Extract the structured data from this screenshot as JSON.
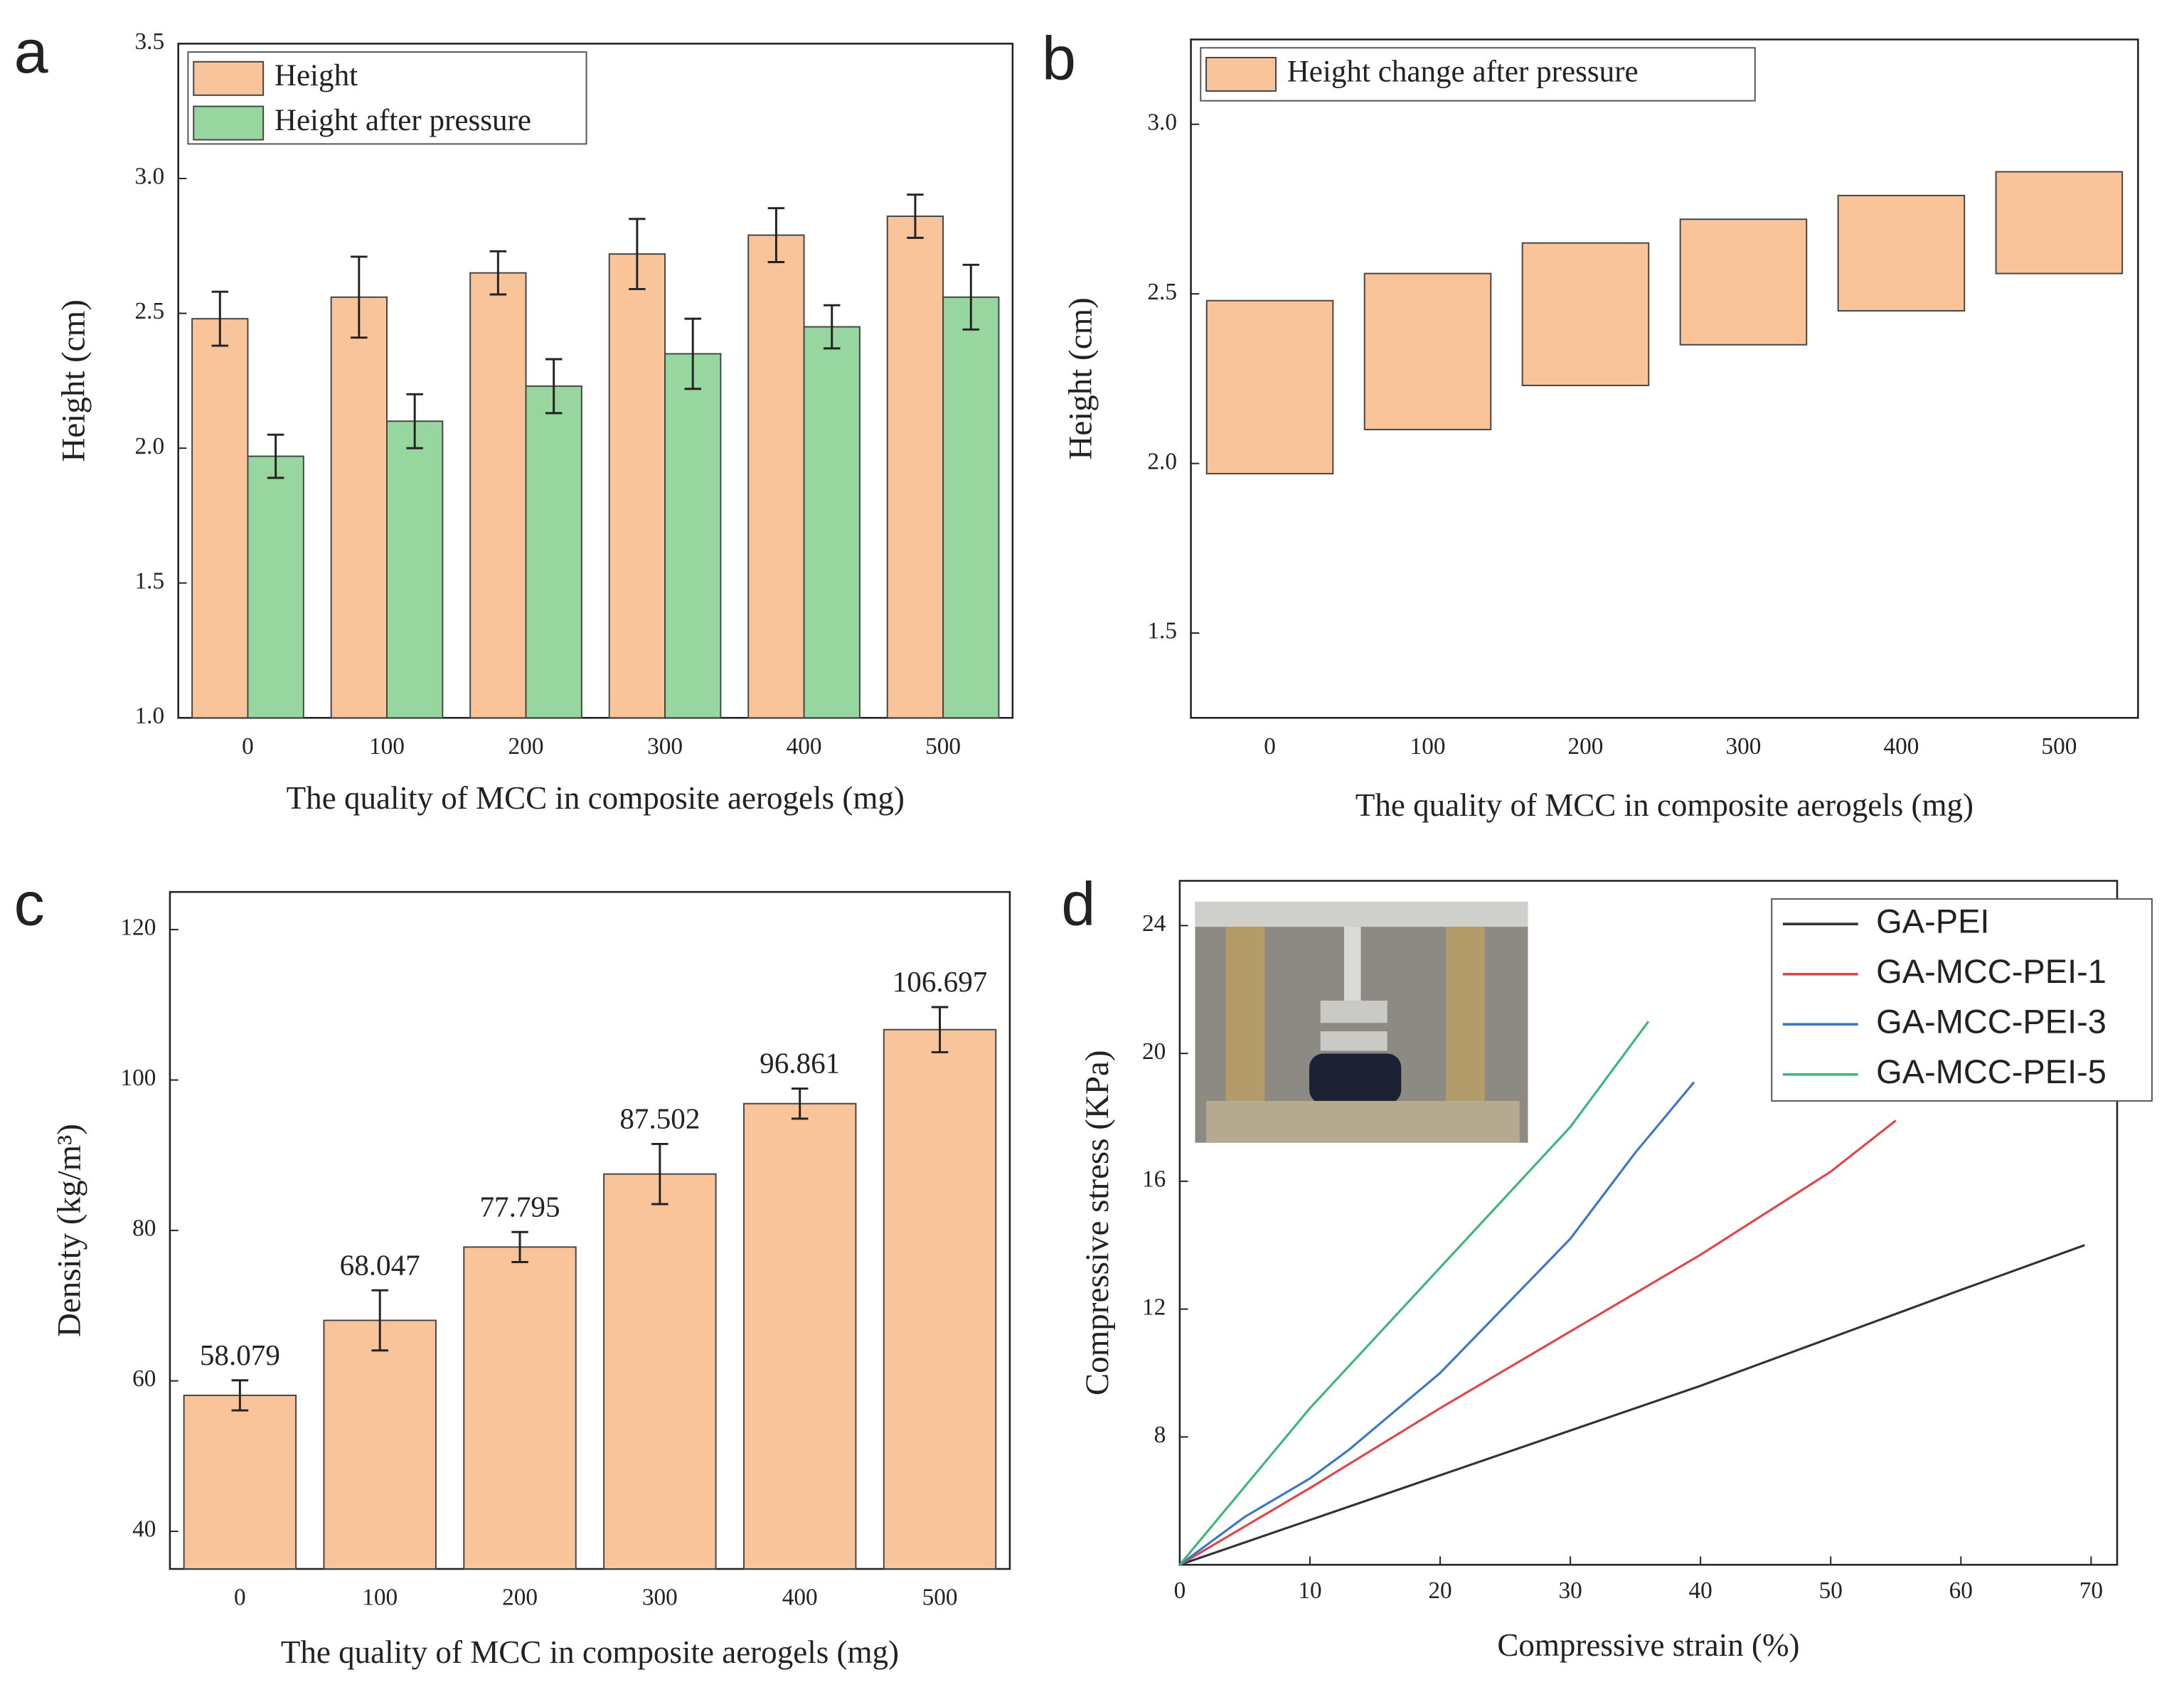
{
  "chart_data": [
    {
      "type": "bar",
      "label": "a",
      "xlabel": "The quality of MCC in composite aerogels (mg)",
      "ylabel": "Height (cm)",
      "categories": [
        "0",
        "100",
        "200",
        "300",
        "400",
        "500"
      ],
      "series": [
        {
          "name": "Height",
          "color": "#f9c49a",
          "values": [
            2.48,
            2.56,
            2.65,
            2.72,
            2.79,
            2.86
          ],
          "errors": [
            0.1,
            0.15,
            0.08,
            0.13,
            0.1,
            0.08
          ]
        },
        {
          "name": "Height after pressure",
          "color": "#98d6a0",
          "values": [
            1.97,
            2.1,
            2.23,
            2.35,
            2.45,
            2.56
          ],
          "errors": [
            0.08,
            0.1,
            0.1,
            0.13,
            0.08,
            0.12
          ]
        }
      ],
      "ylim": [
        1.0,
        3.5
      ],
      "yticks": [
        {
          "value": 1.0,
          "label": "1.0"
        },
        {
          "value": 1.5,
          "label": "1.5"
        },
        {
          "value": 2.0,
          "label": "2.0"
        },
        {
          "value": 2.5,
          "label": "2.5"
        },
        {
          "value": 3.0,
          "label": "3.0"
        },
        {
          "value": 3.5,
          "label": "3.5"
        }
      ],
      "legend": "top-left"
    },
    {
      "type": "range-bar",
      "label": "b",
      "xlabel": "The quality of MCC in composite aerogels (mg)",
      "ylabel": "Height (cm)",
      "categories": [
        "0",
        "100",
        "200",
        "300",
        "400",
        "500"
      ],
      "series": [
        {
          "name": "Height change after pressure",
          "color": "#f9c49a",
          "low": [
            1.97,
            2.1,
            2.23,
            2.35,
            2.45,
            2.56
          ],
          "high": [
            2.48,
            2.56,
            2.65,
            2.72,
            2.79,
            2.86
          ]
        }
      ],
      "ylim": [
        1.25,
        3.25
      ],
      "yticks": [
        {
          "value": 1.5,
          "label": "1.5"
        },
        {
          "value": 2.0,
          "label": "2.0"
        },
        {
          "value": 2.5,
          "label": "2.5"
        },
        {
          "value": 3.0,
          "label": "3.0"
        }
      ],
      "legend": "top-left"
    },
    {
      "type": "bar",
      "label": "c",
      "xlabel": "The quality of MCC in composite aerogels (mg)",
      "ylabel": "Density (kg/m³)",
      "categories": [
        "0",
        "100",
        "200",
        "300",
        "400",
        "500"
      ],
      "values": [
        58.079,
        68.047,
        77.795,
        87.502,
        96.861,
        106.697
      ],
      "errors": [
        2,
        4,
        2,
        4,
        2,
        3
      ],
      "color": "#f9c49a",
      "ylim": [
        35,
        125
      ],
      "yticks": [
        40,
        60,
        80,
        100,
        120
      ]
    },
    {
      "type": "line",
      "label": "d",
      "xlabel": "Compressive strain (%)",
      "ylabel": "Compressive stress (KPa)",
      "series": [
        {
          "name": "GA-PEI",
          "color": "#333333",
          "x": [
            0,
            10,
            20,
            30,
            40,
            50,
            60,
            69.5
          ],
          "values": [
            4,
            5.4,
            6.8,
            8.2,
            9.6,
            11.1,
            12.6,
            14
          ]
        },
        {
          "name": "GA-MCC-PEI-1",
          "color": "#e0454a",
          "x": [
            0,
            5,
            10,
            20,
            30,
            40,
            50,
            55
          ],
          "values": [
            4,
            5.2,
            6.4,
            8.9,
            11.3,
            13.7,
            16.3,
            17.9
          ]
        },
        {
          "name": "GA-MCC-PEI-3",
          "color": "#3a78c4",
          "x": [
            0,
            5,
            10,
            13,
            20,
            30,
            35,
            39.5
          ],
          "values": [
            4,
            5.5,
            6.7,
            7.6,
            10,
            14.2,
            16.9,
            19.1
          ]
        },
        {
          "name": "GA-MCC-PEI-5",
          "color": "#3fb57c",
          "x": [
            0,
            10,
            20,
            30,
            36
          ],
          "values": [
            4,
            8.9,
            13.3,
            17.7,
            21
          ]
        }
      ],
      "xlim": [
        0,
        72
      ],
      "xticks": [
        0,
        10,
        20,
        30,
        40,
        50,
        60,
        70
      ],
      "ylim": [
        4,
        25.4
      ],
      "yticks": [
        8,
        12,
        16,
        20,
        24
      ],
      "legend": "top-right"
    }
  ]
}
